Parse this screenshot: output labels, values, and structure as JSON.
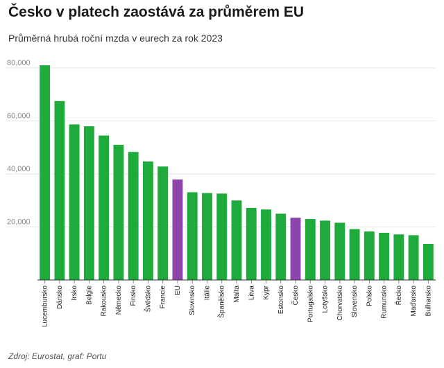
{
  "header": {
    "title": "Česko v platech zaostává za průměrem EU",
    "subtitle": "Průměrná hrubá roční mzda v eurech za rok 2023"
  },
  "footer": {
    "source": "Zdroj: Eurostat, graf: Portu"
  },
  "colors": {
    "default_bar": "#1faa3c",
    "highlight_bar": "#8e44ad",
    "grid": "#e6e6e6",
    "axis": "#333333"
  },
  "chart_data": {
    "type": "bar",
    "title": "Česko v platech zaostává za průměrem EU",
    "subtitle": "Průměrná hrubá roční mzda v eurech za rok 2023",
    "xlabel": "",
    "ylabel": "",
    "ylim": [
      0,
      80000
    ],
    "yticks": [
      20000,
      40000,
      60000,
      80000
    ],
    "ytick_labels": [
      "20,000",
      "40,000",
      "60,000",
      "80,000"
    ],
    "grid": true,
    "highlighted": [
      "EU",
      "Česko"
    ],
    "categories": [
      "Lucembursko",
      "Dánsko",
      "Irsko",
      "Belgie",
      "Rakousko",
      "Německo",
      "Finsko",
      "Švédsko",
      "Francie",
      "EU",
      "Slovinsko",
      "Itálie",
      "Španělsko",
      "Malta",
      "Litva",
      "Kypr",
      "Estonsko",
      "Česko",
      "Portugalsko",
      "Lotyšsko",
      "Chorvatsko",
      "Slovensko",
      "Polsko",
      "Rumunsko",
      "Řecko",
      "Maďarsko",
      "Bulharsko"
    ],
    "values": [
      81000,
      67500,
      58700,
      58000,
      54500,
      51000,
      48300,
      44700,
      42800,
      37900,
      33100,
      32800,
      32600,
      30000,
      27200,
      26600,
      25000,
      23500,
      23000,
      22400,
      21600,
      19200,
      18300,
      17800,
      17200,
      16900,
      13600
    ]
  }
}
